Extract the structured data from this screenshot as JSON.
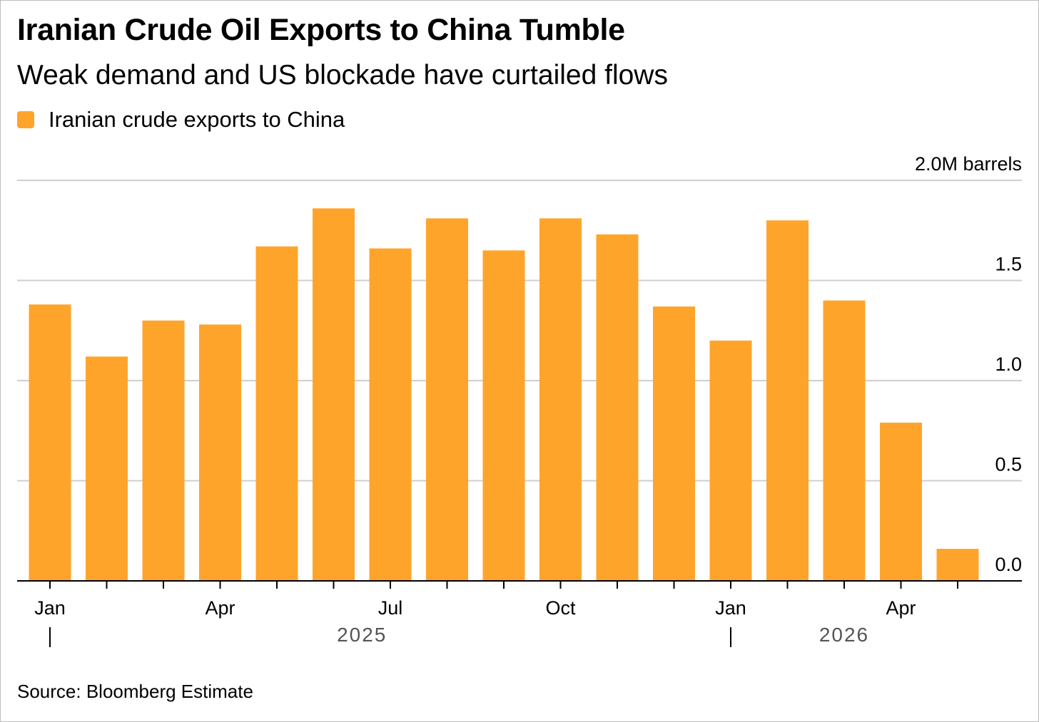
{
  "title": "Iranian Crude Oil Exports to China Tumble",
  "subtitle": "Weak demand and US blockade have curtailed flows",
  "source": "Source: Bloomberg Estimate",
  "colors": {
    "bar": "#FFA42B",
    "grid": "#cfcfcf",
    "axis": "#000000"
  },
  "chart_data": {
    "type": "bar",
    "title": "Iranian Crude Oil Exports to China Tumble",
    "subtitle": "Weak demand and US blockade have curtailed flows",
    "xlabel": "",
    "ylabel": "",
    "unit_label": "2.0M barrels",
    "ylim": [
      0,
      2.0
    ],
    "yticks": [
      {
        "value": 0.0,
        "label": "0.0"
      },
      {
        "value": 0.5,
        "label": "0.5"
      },
      {
        "value": 1.0,
        "label": "1.0"
      },
      {
        "value": 1.5,
        "label": "1.5"
      },
      {
        "value": 2.0,
        "label": "2.0M barrels"
      }
    ],
    "grid": true,
    "legend": "top-left",
    "series": [
      {
        "name": "Iranian crude exports to China",
        "values": [
          1.38,
          1.12,
          1.3,
          1.28,
          1.67,
          1.86,
          1.66,
          1.81,
          1.65,
          1.81,
          1.73,
          1.37,
          1.2,
          1.8,
          1.4,
          0.79,
          0.16
        ]
      }
    ],
    "categories": [
      "2025-01",
      "2025-02",
      "2025-03",
      "2025-04",
      "2025-05",
      "2025-06",
      "2025-07",
      "2025-08",
      "2025-09",
      "2025-10",
      "2025-11",
      "2025-12",
      "2026-01",
      "2026-02",
      "2026-03",
      "2026-04",
      "2026-05"
    ],
    "xtick_labels": [
      {
        "index": 0,
        "label": "Jan"
      },
      {
        "index": 3,
        "label": "Apr"
      },
      {
        "index": 6,
        "label": "Jul"
      },
      {
        "index": 9,
        "label": "Oct"
      },
      {
        "index": 12,
        "label": "Jan"
      },
      {
        "index": 15,
        "label": "Apr"
      }
    ],
    "year_labels": [
      {
        "label": "2025",
        "start_index": 0,
        "end_index": 11
      },
      {
        "label": "2026",
        "start_index": 12,
        "end_index": 16
      }
    ]
  }
}
